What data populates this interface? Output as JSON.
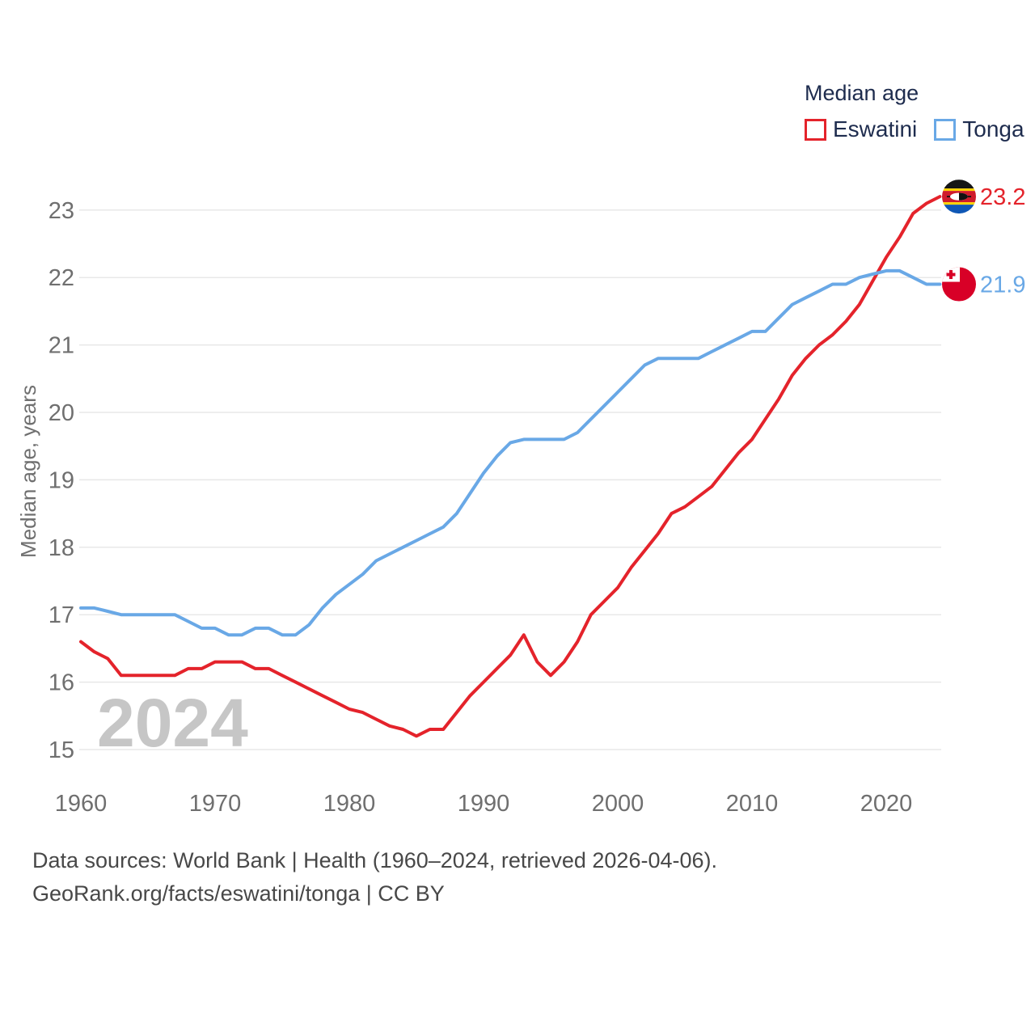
{
  "legend": {
    "title": "Median age",
    "series": [
      {
        "label": "Eswatini",
        "color": "#e4232b"
      },
      {
        "label": "Tonga",
        "color": "#69a8e6"
      }
    ]
  },
  "watermark": "2024",
  "y_axis": {
    "title": "Median age, years",
    "ticks": [
      15,
      16,
      17,
      18,
      19,
      20,
      21,
      22,
      23
    ]
  },
  "x_axis": {
    "ticks": [
      1960,
      1970,
      1980,
      1990,
      2000,
      2010,
      2020
    ]
  },
  "footer": {
    "line1": "Data sources: World Bank | Health (1960–2024, retrieved 2026-04-06).",
    "line2": "GeoRank.org/facts/eswatini/tonga | CC BY"
  },
  "colors": {
    "grid": "#e8e8e8",
    "tick_text": "#6f6f6f",
    "axis_title": "#6f6f6f",
    "watermark": "#c6c6c6",
    "legend_text": "#1e2c4e"
  },
  "flags": {
    "eswatini": {
      "name": "eswatini-flag",
      "stripes": [
        "#161616",
        "#ffd200",
        "#cf1b2b",
        "#ffd200",
        "#0f57b5"
      ],
      "shield_left": "#ffffff",
      "shield_right": "#111111"
    },
    "tonga": {
      "name": "tonga-flag",
      "base": "#d80027",
      "canton": "#ffffff",
      "cross": "#d80027"
    }
  },
  "chart_data": {
    "type": "line",
    "title": "Median age",
    "xlabel": "",
    "ylabel": "Median age, years",
    "grid": "horizontal",
    "legend_position": "top-right",
    "ylim": [
      15,
      23
    ],
    "x_range": [
      1960,
      2024
    ],
    "x": [
      1960,
      1961,
      1962,
      1963,
      1964,
      1965,
      1966,
      1967,
      1968,
      1969,
      1970,
      1971,
      1972,
      1973,
      1974,
      1975,
      1976,
      1977,
      1978,
      1979,
      1980,
      1981,
      1982,
      1983,
      1984,
      1985,
      1986,
      1987,
      1988,
      1989,
      1990,
      1991,
      1992,
      1993,
      1994,
      1995,
      1996,
      1997,
      1998,
      1999,
      2000,
      2001,
      2002,
      2003,
      2004,
      2005,
      2006,
      2007,
      2008,
      2009,
      2010,
      2011,
      2012,
      2013,
      2014,
      2015,
      2016,
      2017,
      2018,
      2019,
      2020,
      2021,
      2022,
      2023,
      2024
    ],
    "series": [
      {
        "name": "Eswatini",
        "color": "#e4232b",
        "end_label": "23.2",
        "flag": "eswatini",
        "values": [
          16.6,
          16.45,
          16.35,
          16.1,
          16.1,
          16.1,
          16.1,
          16.1,
          16.2,
          16.2,
          16.3,
          16.3,
          16.3,
          16.2,
          16.2,
          16.1,
          16.0,
          15.9,
          15.8,
          15.7,
          15.6,
          15.55,
          15.45,
          15.35,
          15.3,
          15.2,
          15.3,
          15.3,
          15.55,
          15.8,
          16.0,
          16.2,
          16.4,
          16.7,
          16.3,
          16.1,
          16.3,
          16.6,
          17.0,
          17.2,
          17.4,
          17.7,
          17.95,
          18.2,
          18.5,
          18.6,
          18.75,
          18.9,
          19.15,
          19.4,
          19.6,
          19.9,
          20.2,
          20.55,
          20.8,
          21.0,
          21.15,
          21.35,
          21.6,
          21.95,
          22.3,
          22.6,
          22.95,
          23.1,
          23.2
        ]
      },
      {
        "name": "Tonga",
        "color": "#69a8e6",
        "end_label": "21.9",
        "flag": "tonga",
        "values": [
          17.1,
          17.1,
          17.05,
          17.0,
          17.0,
          17.0,
          17.0,
          17.0,
          16.9,
          16.8,
          16.8,
          16.7,
          16.7,
          16.8,
          16.8,
          16.7,
          16.7,
          16.85,
          17.1,
          17.3,
          17.45,
          17.6,
          17.8,
          17.9,
          18.0,
          18.1,
          18.2,
          18.3,
          18.5,
          18.8,
          19.1,
          19.35,
          19.55,
          19.6,
          19.6,
          19.6,
          19.6,
          19.7,
          19.9,
          20.1,
          20.3,
          20.5,
          20.7,
          20.8,
          20.8,
          20.8,
          20.8,
          20.9,
          21.0,
          21.1,
          21.2,
          21.2,
          21.4,
          21.6,
          21.7,
          21.8,
          21.9,
          21.9,
          22.0,
          22.05,
          22.1,
          22.1,
          22.0,
          21.9,
          21.9
        ]
      }
    ]
  }
}
